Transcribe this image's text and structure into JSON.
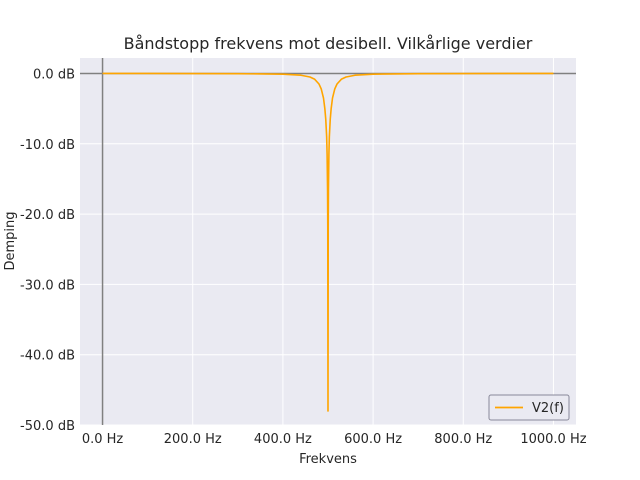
{
  "chart_data": {
    "type": "line",
    "title": "Båndstopp frekvens mot desibell. Vilkårlige verdier",
    "xlabel": "Frekvens",
    "ylabel": "Demping",
    "xlim": [
      -50,
      1050
    ],
    "ylim": [
      -50,
      2.2
    ],
    "x_ticks": [
      0,
      200,
      400,
      600,
      800,
      1000
    ],
    "x_tick_labels": [
      "0.0 Hz",
      "200.0 Hz",
      "400.0 Hz",
      "600.0 Hz",
      "800.0 Hz",
      "1000.0 Hz"
    ],
    "y_ticks": [
      0,
      -10,
      -20,
      -30,
      -40,
      -50
    ],
    "y_tick_labels": [
      "0.0 dB",
      "-10.0 dB",
      "-20.0 dB",
      "-30.0 dB",
      "-40.0 dB",
      "-50.0 dB"
    ],
    "grid": true,
    "legend_position": "bottom-right",
    "reference_lines": {
      "x": 0,
      "y": 0
    },
    "colors": {
      "series": "#ffa500",
      "plot_background": "#eaeaf2",
      "grid": "#ffffff",
      "reference_lines": "#808080"
    },
    "series": [
      {
        "name": "V2(f)",
        "x": [
          0,
          100,
          200,
          300,
          400,
          440,
          460,
          470,
          480,
          485,
          490,
          493,
          495,
          497,
          498,
          499,
          499.5,
          500,
          500.5,
          501,
          502,
          503,
          505,
          507,
          510,
          515,
          520,
          530,
          540,
          560,
          600,
          700,
          800,
          900,
          1000
        ],
        "y": [
          0,
          0,
          -0.01,
          -0.03,
          -0.1,
          -0.25,
          -0.5,
          -0.8,
          -1.5,
          -2.2,
          -3.5,
          -5.0,
          -6.5,
          -9.0,
          -11.5,
          -16.5,
          -22,
          -48,
          -22,
          -16.5,
          -11.5,
          -9.0,
          -6.5,
          -5.0,
          -3.5,
          -2.2,
          -1.5,
          -0.8,
          -0.5,
          -0.25,
          -0.1,
          -0.03,
          -0.01,
          0,
          0
        ]
      }
    ]
  }
}
